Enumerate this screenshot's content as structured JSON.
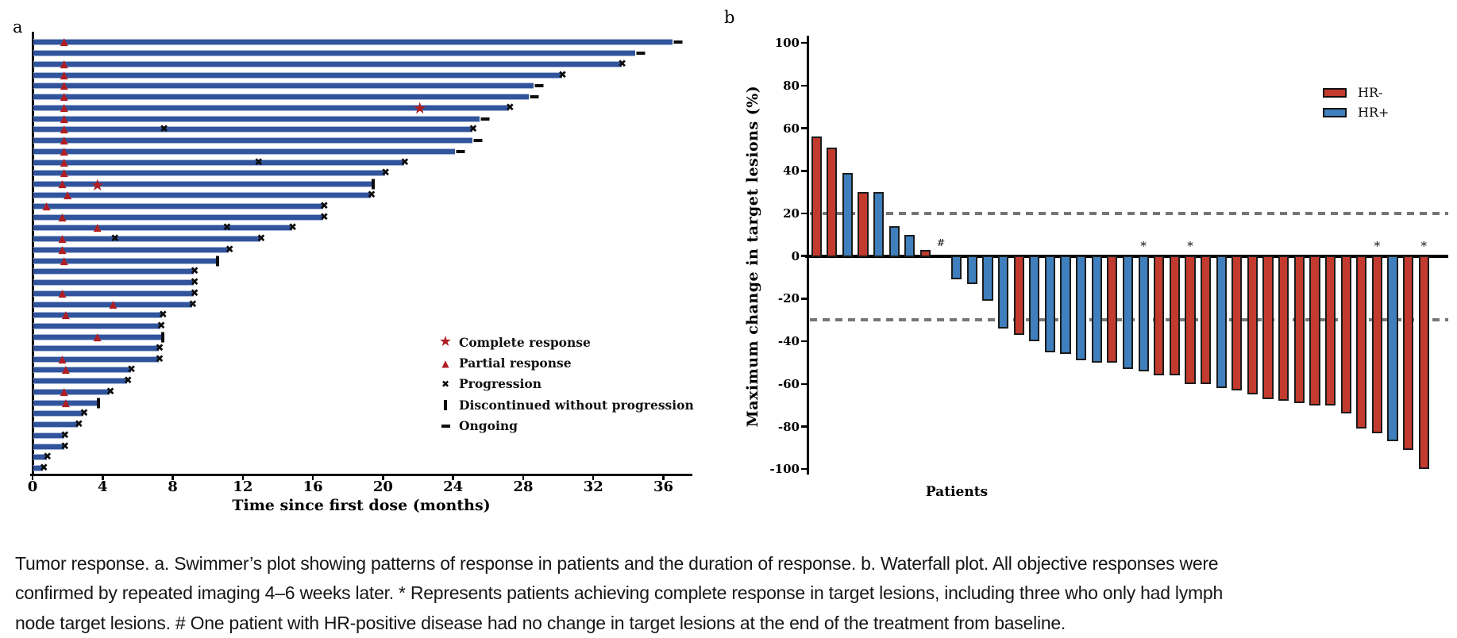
{
  "figure": {
    "panel_a_label": "a",
    "panel_b_label": "b",
    "caption_lines": [
      "Tumor response. a. Swimmer’s plot showing patterns of response in patients and the duration of response. b. Waterfall plot. All objective responses were",
      "confirmed by repeated imaging 4–6 weeks later. * Represents patients achieving complete response in target lesions, including three who only had lymph",
      "node target lesions. # One patient with HR-positive disease had no change in target lesions at the end of the treatment from baseline."
    ]
  },
  "colors": {
    "swimmer_bar": "#31549c",
    "swimmer_bar_edge": "#a9bad9",
    "response_marker_red": "#b01e23",
    "hr_negative": "#c23b2e",
    "hr_positive": "#3f7fbd",
    "reference_line_gray": "#757575",
    "axis_black": "#000000"
  },
  "chart_data": [
    {
      "type": "bar",
      "id": "swimmer",
      "orientation": "horizontal",
      "xlabel": "Time since first dose (months)",
      "xticks": [
        0,
        4,
        8,
        12,
        16,
        20,
        24,
        28,
        32,
        36
      ],
      "xlim": [
        0,
        37.6
      ],
      "grid": false,
      "legend_position": "right-middle",
      "legend": [
        {
          "marker": "star",
          "label": "Complete response"
        },
        {
          "marker": "triangle",
          "label": "Partial response"
        },
        {
          "marker": "x",
          "label": "Progression"
        },
        {
          "marker": "vbar",
          "label": "Discontinued without progression"
        },
        {
          "marker": "dash",
          "label": "Ongoing"
        }
      ],
      "patients": [
        {
          "duration": 36.5,
          "end": "ongoing",
          "partial_response": 1.8,
          "complete_response": null,
          "progression_events": []
        },
        {
          "duration": 34.4,
          "end": "ongoing",
          "partial_response": null,
          "complete_response": null,
          "progression_events": []
        },
        {
          "duration": 33.6,
          "end": "progression",
          "partial_response": 1.8,
          "complete_response": null,
          "progression_events": []
        },
        {
          "duration": 30.2,
          "end": "progression",
          "partial_response": 1.8,
          "complete_response": null,
          "progression_events": []
        },
        {
          "duration": 28.6,
          "end": "ongoing",
          "partial_response": 1.8,
          "complete_response": null,
          "progression_events": []
        },
        {
          "duration": 28.3,
          "end": "ongoing",
          "partial_response": 1.8,
          "complete_response": null,
          "progression_events": []
        },
        {
          "duration": 27.2,
          "end": "progression",
          "partial_response": 1.8,
          "complete_response": 22.1,
          "progression_events": []
        },
        {
          "duration": 25.5,
          "end": "ongoing",
          "partial_response": 1.8,
          "complete_response": null,
          "progression_events": []
        },
        {
          "duration": 25.1,
          "end": "progression",
          "partial_response": 1.8,
          "complete_response": null,
          "progression_events": [
            7.5
          ]
        },
        {
          "duration": 25.1,
          "end": "ongoing",
          "partial_response": 1.8,
          "complete_response": null,
          "progression_events": []
        },
        {
          "duration": 24.1,
          "end": "ongoing",
          "partial_response": 1.8,
          "complete_response": null,
          "progression_events": []
        },
        {
          "duration": 21.2,
          "end": "progression",
          "partial_response": 1.8,
          "complete_response": null,
          "progression_events": [
            12.9
          ]
        },
        {
          "duration": 20.1,
          "end": "progression",
          "partial_response": 1.8,
          "complete_response": null,
          "progression_events": []
        },
        {
          "duration": 19.4,
          "end": "discontinued",
          "partial_response": 1.7,
          "complete_response": 3.7,
          "progression_events": []
        },
        {
          "duration": 19.3,
          "end": "progression",
          "partial_response": 2.0,
          "complete_response": null,
          "progression_events": []
        },
        {
          "duration": 16.6,
          "end": "progression",
          "partial_response": 0.8,
          "complete_response": null,
          "progression_events": []
        },
        {
          "duration": 16.6,
          "end": "progression",
          "partial_response": 1.7,
          "complete_response": null,
          "progression_events": []
        },
        {
          "duration": 14.8,
          "end": "progression",
          "partial_response": 3.7,
          "complete_response": null,
          "progression_events": [
            11.1
          ]
        },
        {
          "duration": 13.0,
          "end": "progression",
          "partial_response": 1.7,
          "complete_response": null,
          "progression_events": [
            4.7
          ]
        },
        {
          "duration": 11.2,
          "end": "progression",
          "partial_response": 1.7,
          "complete_response": null,
          "progression_events": []
        },
        {
          "duration": 10.5,
          "end": "discontinued",
          "partial_response": 1.8,
          "complete_response": null,
          "progression_events": []
        },
        {
          "duration": 9.2,
          "end": "progression",
          "partial_response": null,
          "complete_response": null,
          "progression_events": []
        },
        {
          "duration": 9.2,
          "end": "progression",
          "partial_response": null,
          "complete_response": null,
          "progression_events": []
        },
        {
          "duration": 9.2,
          "end": "progression",
          "partial_response": 1.7,
          "complete_response": null,
          "progression_events": []
        },
        {
          "duration": 9.1,
          "end": "progression",
          "partial_response": 4.6,
          "complete_response": null,
          "progression_events": []
        },
        {
          "duration": 7.4,
          "end": "progression",
          "partial_response": 1.9,
          "complete_response": null,
          "progression_events": []
        },
        {
          "duration": 7.3,
          "end": "progression",
          "partial_response": null,
          "complete_response": null,
          "progression_events": []
        },
        {
          "duration": 7.4,
          "end": "discontinued",
          "partial_response": 3.7,
          "complete_response": null,
          "progression_events": []
        },
        {
          "duration": 7.2,
          "end": "progression",
          "partial_response": null,
          "complete_response": null,
          "progression_events": []
        },
        {
          "duration": 7.2,
          "end": "progression",
          "partial_response": 1.7,
          "complete_response": null,
          "progression_events": []
        },
        {
          "duration": 5.6,
          "end": "progression",
          "partial_response": 1.9,
          "complete_response": null,
          "progression_events": []
        },
        {
          "duration": 5.4,
          "end": "progression",
          "partial_response": null,
          "complete_response": null,
          "progression_events": []
        },
        {
          "duration": 4.4,
          "end": "progression",
          "partial_response": 1.8,
          "complete_response": null,
          "progression_events": []
        },
        {
          "duration": 3.7,
          "end": "discontinued",
          "partial_response": 1.9,
          "complete_response": null,
          "progression_events": []
        },
        {
          "duration": 2.9,
          "end": "progression",
          "partial_response": null,
          "complete_response": null,
          "progression_events": []
        },
        {
          "duration": 2.6,
          "end": "progression",
          "partial_response": null,
          "complete_response": null,
          "progression_events": []
        },
        {
          "duration": 1.8,
          "end": "progression",
          "partial_response": null,
          "complete_response": null,
          "progression_events": []
        },
        {
          "duration": 1.8,
          "end": "progression",
          "partial_response": null,
          "complete_response": null,
          "progression_events": []
        },
        {
          "duration": 0.8,
          "end": "progression",
          "partial_response": null,
          "complete_response": null,
          "progression_events": []
        },
        {
          "duration": 0.6,
          "end": "progression",
          "partial_response": null,
          "complete_response": null,
          "progression_events": []
        }
      ]
    },
    {
      "type": "bar",
      "id": "waterfall",
      "orientation": "vertical",
      "ylabel": "Maximum change in target lesions (%)",
      "xlabel": "Patients",
      "ylim": [
        -100,
        100
      ],
      "yticks": [
        100,
        80,
        60,
        40,
        20,
        0,
        -20,
        -40,
        -60,
        -80,
        -100
      ],
      "reference_lines": [
        20,
        -30
      ],
      "grid": false,
      "legend_position": "top-right",
      "legend": [
        {
          "label": "HR-",
          "color": "#c23b2e"
        },
        {
          "label": "HR+",
          "color": "#3f7fbd"
        }
      ],
      "values": [
        56,
        51,
        39,
        30,
        30,
        14,
        10,
        3,
        0,
        -11,
        -13,
        -21,
        -34,
        -37,
        -40,
        -45,
        -46,
        -49,
        -50,
        -50,
        -53,
        -54,
        -56,
        -56,
        -60,
        -60,
        -62,
        -63,
        -65,
        -67,
        -68,
        -69,
        -70,
        -70,
        -74,
        -81,
        -83,
        -87,
        -91,
        -100
      ],
      "groups": [
        "HR-",
        "HR-",
        "HR+",
        "HR-",
        "HR+",
        "HR+",
        "HR+",
        "HR-",
        "HR+",
        "HR+",
        "HR+",
        "HR+",
        "HR+",
        "HR-",
        "HR+",
        "HR+",
        "HR+",
        "HR+",
        "HR+",
        "HR-",
        "HR+",
        "HR+",
        "HR-",
        "HR-",
        "HR-",
        "HR-",
        "HR+",
        "HR-",
        "HR-",
        "HR-",
        "HR-",
        "HR-",
        "HR-",
        "HR-",
        "HR-",
        "HR-",
        "HR-",
        "HR+",
        "HR-",
        "HR-"
      ],
      "annotations": [
        {
          "patient": 9,
          "symbol": "#"
        },
        {
          "patient": 22,
          "symbol": "*"
        },
        {
          "patient": 25,
          "symbol": "*"
        },
        {
          "patient": 37,
          "symbol": "*"
        },
        {
          "patient": 40,
          "symbol": "*"
        }
      ]
    }
  ]
}
